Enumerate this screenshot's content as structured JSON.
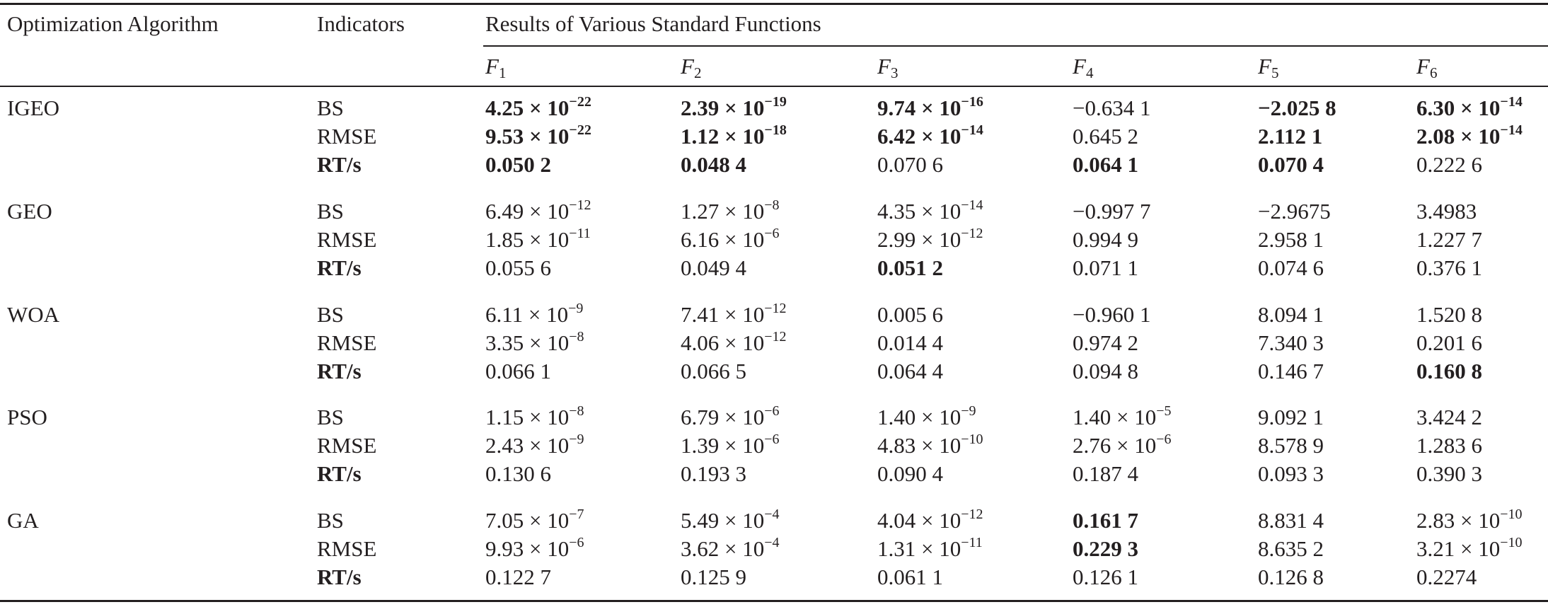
{
  "table": {
    "header": {
      "algorithm": "Optimization Algorithm",
      "indicators": "Indicators",
      "results": "Results of Various Standard Functions",
      "functions": [
        "F",
        "F",
        "F",
        "F",
        "F",
        "F"
      ],
      "function_subs": [
        "1",
        "2",
        "3",
        "4",
        "5",
        "6"
      ]
    },
    "groups": [
      {
        "algorithm": "IGEO",
        "rows": [
          {
            "indicator": "BS",
            "indicator_bold": false,
            "cells": [
              {
                "m": "4.25 ×",
                "e": "10",
                "x": "−22",
                "b": true
              },
              {
                "m": "2.39 ×",
                "e": "10",
                "x": "−19",
                "b": true
              },
              {
                "m": "9.74 ×",
                "e": "10",
                "x": "−16",
                "b": true
              },
              {
                "m": "−0.634 1",
                "e": "",
                "x": "",
                "b": false
              },
              {
                "m": "−2.025 8",
                "e": "",
                "x": "",
                "b": true
              },
              {
                "m": "6.30 ×",
                "e": "10",
                "x": "−14",
                "b": true
              }
            ]
          },
          {
            "indicator": "RMSE",
            "indicator_bold": false,
            "cells": [
              {
                "m": "9.53 ×",
                "e": "10",
                "x": "−22",
                "b": true
              },
              {
                "m": "1.12 ×",
                "e": "10",
                "x": "−18",
                "b": true
              },
              {
                "m": "6.42 ×",
                "e": "10",
                "x": "−14",
                "b": true
              },
              {
                "m": "0.645 2",
                "e": "",
                "x": "",
                "b": false
              },
              {
                "m": "2.112 1",
                "e": "",
                "x": "",
                "b": true
              },
              {
                "m": "2.08 ×",
                "e": "10",
                "x": "−14",
                "b": true
              }
            ]
          },
          {
            "indicator": "RT/s",
            "indicator_bold": true,
            "cells": [
              {
                "m": "0.050 2",
                "e": "",
                "x": "",
                "b": true
              },
              {
                "m": "0.048 4",
                "e": "",
                "x": "",
                "b": true
              },
              {
                "m": "0.070 6",
                "e": "",
                "x": "",
                "b": false
              },
              {
                "m": "0.064 1",
                "e": "",
                "x": "",
                "b": true
              },
              {
                "m": "0.070 4",
                "e": "",
                "x": "",
                "b": true
              },
              {
                "m": "0.222 6",
                "e": "",
                "x": "",
                "b": false
              }
            ]
          }
        ]
      },
      {
        "algorithm": "GEO",
        "rows": [
          {
            "indicator": "BS",
            "indicator_bold": false,
            "cells": [
              {
                "m": "6.49 ×",
                "e": "10",
                "x": "−12",
                "b": false
              },
              {
                "m": "1.27 ×",
                "e": "10",
                "x": "−8",
                "b": false
              },
              {
                "m": "4.35 ×",
                "e": "10",
                "x": "−14",
                "b": false
              },
              {
                "m": "−0.997 7",
                "e": "",
                "x": "",
                "b": false
              },
              {
                "m": "−2.9675",
                "e": "",
                "x": "",
                "b": false
              },
              {
                "m": "3.4983",
                "e": "",
                "x": "",
                "b": false
              }
            ]
          },
          {
            "indicator": "RMSE",
            "indicator_bold": false,
            "cells": [
              {
                "m": "1.85 ×",
                "e": "10",
                "x": "−11",
                "b": false
              },
              {
                "m": "6.16 ×",
                "e": "10",
                "x": "−6",
                "b": false
              },
              {
                "m": "2.99 ×",
                "e": "10",
                "x": "−12",
                "b": false
              },
              {
                "m": "0.994 9",
                "e": "",
                "x": "",
                "b": false
              },
              {
                "m": "2.958 1",
                "e": "",
                "x": "",
                "b": false
              },
              {
                "m": "1.227 7",
                "e": "",
                "x": "",
                "b": false
              }
            ]
          },
          {
            "indicator": "RT/s",
            "indicator_bold": true,
            "cells": [
              {
                "m": "0.055 6",
                "e": "",
                "x": "",
                "b": false
              },
              {
                "m": "0.049 4",
                "e": "",
                "x": "",
                "b": false
              },
              {
                "m": "0.051 2",
                "e": "",
                "x": "",
                "b": true
              },
              {
                "m": "0.071 1",
                "e": "",
                "x": "",
                "b": false
              },
              {
                "m": "0.074 6",
                "e": "",
                "x": "",
                "b": false
              },
              {
                "m": "0.376 1",
                "e": "",
                "x": "",
                "b": false
              }
            ]
          }
        ]
      },
      {
        "algorithm": "WOA",
        "rows": [
          {
            "indicator": "BS",
            "indicator_bold": false,
            "cells": [
              {
                "m": "6.11 ×",
                "e": "10",
                "x": "−9",
                "b": false
              },
              {
                "m": "7.41 ×",
                "e": "10",
                "x": "−12",
                "b": false
              },
              {
                "m": "0.005 6",
                "e": "",
                "x": "",
                "b": false
              },
              {
                "m": "−0.960 1",
                "e": "",
                "x": "",
                "b": false
              },
              {
                "m": "8.094 1",
                "e": "",
                "x": "",
                "b": false
              },
              {
                "m": "1.520 8",
                "e": "",
                "x": "",
                "b": false
              }
            ]
          },
          {
            "indicator": "RMSE",
            "indicator_bold": false,
            "cells": [
              {
                "m": "3.35 ×",
                "e": "10",
                "x": "−8",
                "b": false
              },
              {
                "m": "4.06 ×",
                "e": "10",
                "x": "−12",
                "b": false
              },
              {
                "m": "0.014 4",
                "e": "",
                "x": "",
                "b": false
              },
              {
                "m": "0.974 2",
                "e": "",
                "x": "",
                "b": false
              },
              {
                "m": "7.340 3",
                "e": "",
                "x": "",
                "b": false
              },
              {
                "m": "0.201 6",
                "e": "",
                "x": "",
                "b": false
              }
            ]
          },
          {
            "indicator": "RT/s",
            "indicator_bold": true,
            "cells": [
              {
                "m": "0.066 1",
                "e": "",
                "x": "",
                "b": false
              },
              {
                "m": "0.066 5",
                "e": "",
                "x": "",
                "b": false
              },
              {
                "m": "0.064 4",
                "e": "",
                "x": "",
                "b": false
              },
              {
                "m": "0.094 8",
                "e": "",
                "x": "",
                "b": false
              },
              {
                "m": "0.146 7",
                "e": "",
                "x": "",
                "b": false
              },
              {
                "m": "0.160 8",
                "e": "",
                "x": "",
                "b": true
              }
            ]
          }
        ]
      },
      {
        "algorithm": "PSO",
        "rows": [
          {
            "indicator": "BS",
            "indicator_bold": false,
            "cells": [
              {
                "m": "1.15 ×",
                "e": "10",
                "x": "−8",
                "b": false
              },
              {
                "m": "6.79 ×",
                "e": "10",
                "x": "−6",
                "b": false
              },
              {
                "m": "1.40 ×",
                "e": "10",
                "x": "−9",
                "b": false
              },
              {
                "m": "1.40 ×",
                "e": "10",
                "x": "−5",
                "b": false
              },
              {
                "m": "9.092 1",
                "e": "",
                "x": "",
                "b": false
              },
              {
                "m": "3.424 2",
                "e": "",
                "x": "",
                "b": false
              }
            ]
          },
          {
            "indicator": "RMSE",
            "indicator_bold": false,
            "cells": [
              {
                "m": "2.43 ×",
                "e": "10",
                "x": "−9",
                "b": false
              },
              {
                "m": "1.39 ×",
                "e": "10",
                "x": "−6",
                "b": false
              },
              {
                "m": "4.83 ×",
                "e": "10",
                "x": "−10",
                "b": false
              },
              {
                "m": "2.76 ×",
                "e": "10",
                "x": "−6",
                "b": false
              },
              {
                "m": "8.578 9",
                "e": "",
                "x": "",
                "b": false
              },
              {
                "m": "1.283 6",
                "e": "",
                "x": "",
                "b": false
              }
            ]
          },
          {
            "indicator": "RT/s",
            "indicator_bold": true,
            "cells": [
              {
                "m": "0.130 6",
                "e": "",
                "x": "",
                "b": false
              },
              {
                "m": "0.193 3",
                "e": "",
                "x": "",
                "b": false
              },
              {
                "m": "0.090 4",
                "e": "",
                "x": "",
                "b": false
              },
              {
                "m": "0.187 4",
                "e": "",
                "x": "",
                "b": false
              },
              {
                "m": "0.093 3",
                "e": "",
                "x": "",
                "b": false
              },
              {
                "m": "0.390 3",
                "e": "",
                "x": "",
                "b": false
              }
            ]
          }
        ]
      },
      {
        "algorithm": "GA",
        "rows": [
          {
            "indicator": "BS",
            "indicator_bold": false,
            "cells": [
              {
                "m": "7.05 ×",
                "e": "10",
                "x": "−7",
                "b": false
              },
              {
                "m": "5.49 ×",
                "e": "10",
                "x": "−4",
                "b": false
              },
              {
                "m": "4.04 ×",
                "e": "10",
                "x": "−12",
                "b": false
              },
              {
                "m": "0.161 7",
                "e": "",
                "x": "",
                "b": true
              },
              {
                "m": "8.831 4",
                "e": "",
                "x": "",
                "b": false
              },
              {
                "m": "2.83 ×",
                "e": "10",
                "x": "−10",
                "b": false
              }
            ]
          },
          {
            "indicator": "RMSE",
            "indicator_bold": false,
            "cells": [
              {
                "m": "9.93 ×",
                "e": "10",
                "x": "−6",
                "b": false
              },
              {
                "m": "3.62 ×",
                "e": "10",
                "x": "−4",
                "b": false
              },
              {
                "m": "1.31 ×",
                "e": "10",
                "x": "−11",
                "b": false
              },
              {
                "m": "0.229 3",
                "e": "",
                "x": "",
                "b": true
              },
              {
                "m": "8.635 2",
                "e": "",
                "x": "",
                "b": false
              },
              {
                "m": "3.21 ×",
                "e": "10",
                "x": "−10",
                "b": false
              }
            ]
          },
          {
            "indicator": "RT/s",
            "indicator_bold": true,
            "cells": [
              {
                "m": "0.122 7",
                "e": "",
                "x": "",
                "b": false
              },
              {
                "m": "0.125 9",
                "e": "",
                "x": "",
                "b": false
              },
              {
                "m": "0.061 1",
                "e": "",
                "x": "",
                "b": false
              },
              {
                "m": "0.126 1",
                "e": "",
                "x": "",
                "b": false
              },
              {
                "m": "0.126 8",
                "e": "",
                "x": "",
                "b": false
              },
              {
                "m": "0.2274",
                "e": "",
                "x": "",
                "b": false
              }
            ]
          }
        ]
      }
    ]
  }
}
